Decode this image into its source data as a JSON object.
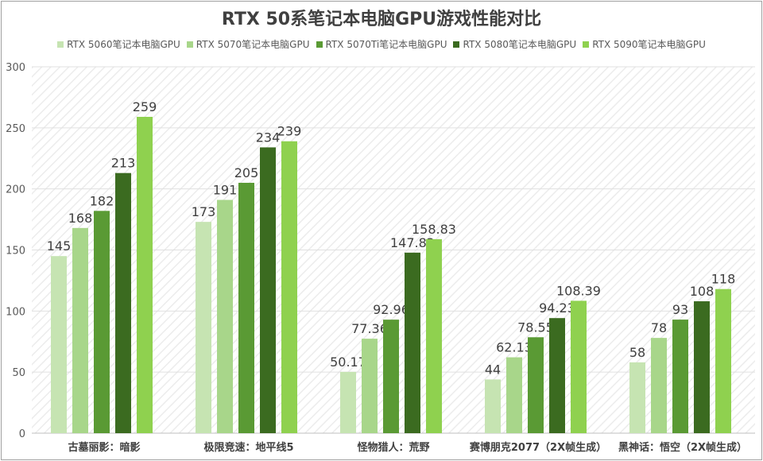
{
  "chart_data": {
    "type": "bar",
    "title": "RTX 50系笔记本电脑GPU游戏性能对比",
    "categories": [
      "古墓丽影：暗影",
      "极限竞速：地平线5",
      "怪物猎人：荒野",
      "赛博朋克2077（2X帧生成）",
      "黑神话：悟空（2X帧生成）"
    ],
    "series": [
      {
        "name": "RTX 5060笔记本电脑GPU",
        "color": "#c6e4b2",
        "values": [
          145,
          173,
          50.17,
          44,
          58
        ]
      },
      {
        "name": "RTX 5070笔记本电脑GPU",
        "color": "#a8d68a",
        "values": [
          168,
          191,
          77.36,
          62.13,
          78
        ]
      },
      {
        "name": "RTX 5070Ti笔记本电脑GPU",
        "color": "#5a9a34",
        "values": [
          182,
          205,
          92.96,
          78.55,
          93
        ]
      },
      {
        "name": "RTX 5080笔记本电脑GPU",
        "color": "#3b6b20",
        "values": [
          213,
          234,
          147.82,
          94.23,
          108
        ]
      },
      {
        "name": "RTX 5090笔记本电脑GPU",
        "color": "#8fd14f",
        "values": [
          259,
          239,
          158.83,
          108.39,
          118
        ]
      }
    ],
    "ylim": [
      0,
      300
    ],
    "yticks": [
      0,
      50,
      100,
      150,
      200,
      250,
      300
    ],
    "grid": true,
    "legend": "top",
    "xlabel": "",
    "ylabel": ""
  }
}
